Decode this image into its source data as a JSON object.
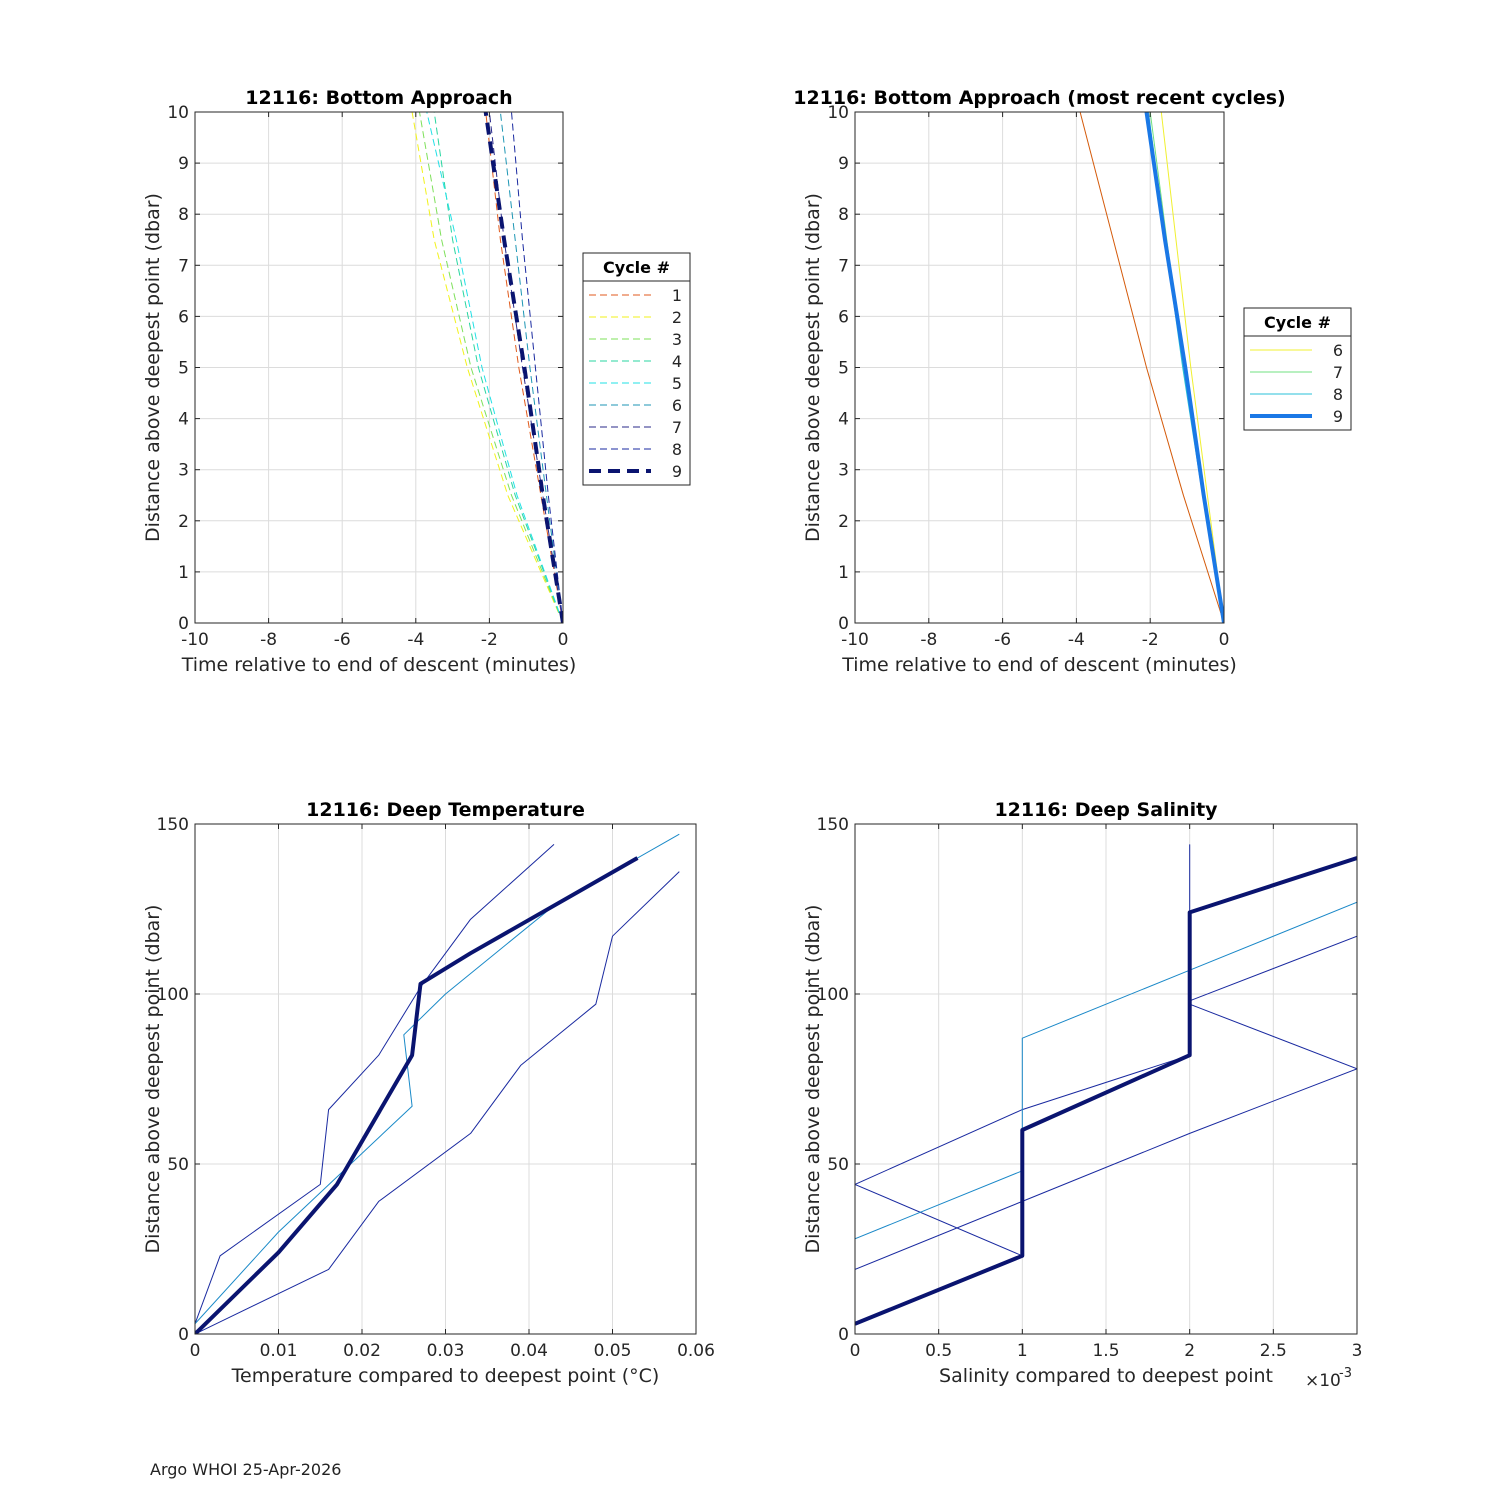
{
  "footer": "Argo WHOI 25-Apr-2026",
  "chart_data": [
    {
      "type": "line",
      "title": "12116: Bottom Approach",
      "xlabel": "Time relative to end of descent (minutes)",
      "ylabel": "Distance above deepest point (dbar)",
      "xlim": [
        -10,
        0
      ],
      "ylim": [
        0,
        10
      ],
      "xticks": [
        -10,
        -8,
        -6,
        -4,
        -2,
        0
      ],
      "yticks": [
        0,
        1,
        2,
        3,
        4,
        5,
        6,
        7,
        8,
        9,
        10
      ],
      "grid": true,
      "legend": {
        "title": "Cycle #",
        "placement": "outside-right"
      },
      "series": [
        {
          "name": "1",
          "color": "#e05a1c",
          "dash": "dashed",
          "width": 1,
          "x": [
            0,
            -0.6,
            -1.2,
            -1.7,
            -2.1
          ],
          "y": [
            0,
            2.5,
            5,
            7.5,
            10
          ]
        },
        {
          "name": "2",
          "color": "#f2f21a",
          "dash": "dashed",
          "width": 1,
          "x": [
            0,
            -1.5,
            -2.6,
            -3.5,
            -4.1
          ],
          "y": [
            0,
            2.5,
            5,
            7.5,
            10
          ]
        },
        {
          "name": "3",
          "color": "#7ee05a",
          "dash": "dashed",
          "width": 1,
          "x": [
            0,
            -1.4,
            -2.5,
            -3.3,
            -3.9
          ],
          "y": [
            0,
            2.5,
            5,
            7.5,
            10
          ]
        },
        {
          "name": "4",
          "color": "#28d6a0",
          "dash": "dashed",
          "width": 1,
          "x": [
            0,
            -1.3,
            -2.3,
            -3.0,
            -3.5
          ],
          "y": [
            0,
            2.5,
            5,
            7.5,
            10
          ]
        },
        {
          "name": "5",
          "color": "#22e0e6",
          "dash": "dashed",
          "width": 1,
          "x": [
            0,
            -1.25,
            -2.2,
            -2.9,
            -3.7
          ],
          "y": [
            0,
            2.5,
            5,
            7.5,
            10
          ]
        },
        {
          "name": "6",
          "color": "#1d96b4",
          "dash": "dashed",
          "width": 1,
          "x": [
            0,
            -0.45,
            -0.9,
            -1.3,
            -1.7
          ],
          "y": [
            0,
            2.5,
            5,
            7.5,
            10
          ]
        },
        {
          "name": "7",
          "color": "#2a2a8a",
          "dash": "dashed",
          "width": 1,
          "x": [
            0,
            -0.55,
            -1.1,
            -1.6,
            -2.0
          ],
          "y": [
            0,
            2.5,
            5,
            7.5,
            10
          ]
        },
        {
          "name": "8",
          "color": "#1a2aa0",
          "dash": "dashed",
          "width": 1,
          "x": [
            0,
            -0.4,
            -0.75,
            -1.1,
            -1.4
          ],
          "y": [
            0,
            2.5,
            5,
            7.5,
            10
          ]
        },
        {
          "name": "9",
          "color": "#0a1470",
          "dash": "dashed",
          "width": 4,
          "x": [
            0,
            -0.55,
            -1.05,
            -1.6,
            -2.1
          ],
          "y": [
            0,
            2.5,
            5,
            7.5,
            10
          ]
        }
      ]
    },
    {
      "type": "line",
      "title": "12116: Bottom Approach (most recent cycles)",
      "xlabel": "Time relative to end of descent (minutes)",
      "ylabel": "Distance above deepest point (dbar)",
      "xlim": [
        -10,
        0
      ],
      "ylim": [
        0,
        10
      ],
      "xticks": [
        -10,
        -8,
        -6,
        -4,
        -2,
        0
      ],
      "yticks": [
        0,
        1,
        2,
        3,
        4,
        5,
        6,
        7,
        8,
        9,
        10
      ],
      "grid": true,
      "legend": {
        "title": "Cycle #",
        "placement": "outside-right"
      },
      "series": [
        {
          "name": "",
          "color": "#d45a0a",
          "dash": "solid",
          "width": 1,
          "legend": false,
          "x": [
            0,
            -1.1,
            -2.1,
            -3.0,
            -3.9
          ],
          "y": [
            0,
            2.5,
            5,
            7.5,
            10
          ]
        },
        {
          "name": "6",
          "color": "#f0f030",
          "dash": "solid",
          "width": 1,
          "x": [
            0,
            -0.45,
            -0.9,
            -1.3,
            -1.7
          ],
          "y": [
            0,
            2.5,
            5,
            7.5,
            10
          ]
        },
        {
          "name": "7",
          "color": "#70e080",
          "dash": "solid",
          "width": 1,
          "x": [
            0,
            -0.55,
            -1.1,
            -1.55,
            -2.0
          ],
          "y": [
            0,
            2.5,
            5,
            7.5,
            10
          ]
        },
        {
          "name": "8",
          "color": "#28c0d8",
          "dash": "solid",
          "width": 1,
          "x": [
            0,
            -0.58,
            -1.12,
            -1.6,
            -2.05
          ],
          "y": [
            0,
            2.5,
            5,
            7.5,
            10
          ]
        },
        {
          "name": "9",
          "color": "#1a78e6",
          "dash": "solid",
          "width": 4,
          "x": [
            0,
            -0.55,
            -1.05,
            -1.6,
            -2.1
          ],
          "y": [
            0,
            2.5,
            5,
            7.5,
            10
          ]
        }
      ]
    },
    {
      "type": "line",
      "title": "12116: Deep Temperature",
      "xlabel": "Temperature compared to deepest point (°C)",
      "ylabel": "Distance above deepest point (dbar)",
      "xlim": [
        0,
        0.06
      ],
      "ylim": [
        0,
        150
      ],
      "xticks": [
        0,
        0.01,
        0.02,
        0.03,
        0.04,
        0.05,
        0.06
      ],
      "yticks": [
        0,
        50,
        100,
        150
      ],
      "grid": true,
      "series": [
        {
          "color": "#1a2aa0",
          "width": 1,
          "x": [
            0,
            0.003,
            0.015,
            0.016,
            0.022,
            0.027,
            0.033,
            0.043
          ],
          "y": [
            3,
            23,
            44,
            66,
            82,
            102,
            122,
            144
          ]
        },
        {
          "color": "#1a8ac8",
          "width": 1,
          "x": [
            0,
            0.01,
            0.026,
            0.025,
            0.03,
            0.043,
            0.058
          ],
          "y": [
            3,
            30,
            67,
            88,
            100,
            126,
            147
          ]
        },
        {
          "color": "#1a2aa0",
          "width": 1,
          "x": [
            0,
            0.016,
            0.022,
            0.033,
            0.039,
            0.048,
            0.05,
            0.058
          ],
          "y": [
            0,
            19,
            39,
            59,
            79,
            97,
            117,
            136
          ]
        },
        {
          "color": "#0a1470",
          "width": 4,
          "x": [
            0,
            0.01,
            0.017,
            0.026,
            0.027,
            0.033,
            0.053
          ],
          "y": [
            0,
            24,
            44,
            82,
            103,
            112,
            140
          ]
        }
      ]
    },
    {
      "type": "line",
      "title": "12116: Deep Salinity",
      "xlabel": "Salinity compared to deepest point",
      "x_multiplier": "×10",
      "x_exponent": "-3",
      "ylabel": "Distance above deepest point (dbar)",
      "xlim": [
        0,
        3
      ],
      "ylim": [
        0,
        150
      ],
      "xticks": [
        0,
        0.5,
        1,
        1.5,
        2,
        2.5,
        3
      ],
      "xticklabels": [
        "0",
        "0.5",
        "1",
        "1.5",
        "2",
        "2.5",
        "3"
      ],
      "yticks": [
        0,
        50,
        100,
        150
      ],
      "grid": true,
      "series": [
        {
          "color": "#1a2aa0",
          "width": 1,
          "x": [
            0,
            1,
            0,
            1,
            2,
            2
          ],
          "y": [
            44,
            23,
            44,
            66,
            82,
            144
          ]
        },
        {
          "color": "#1a88c8",
          "width": 1,
          "x": [
            0,
            1,
            1,
            2,
            3,
            3
          ],
          "y": [
            28,
            48,
            87,
            107,
            127,
            147
          ]
        },
        {
          "color": "#1a2aa0",
          "width": 1,
          "x": [
            0,
            1,
            2,
            3,
            2,
            2,
            3
          ],
          "y": [
            19,
            39,
            59,
            78,
            97,
            98,
            117
          ]
        },
        {
          "color": "#0a1470",
          "width": 4,
          "x": [
            0,
            1,
            1,
            2,
            2,
            3
          ],
          "y": [
            3,
            23,
            60,
            82,
            124,
            140
          ]
        }
      ]
    }
  ]
}
